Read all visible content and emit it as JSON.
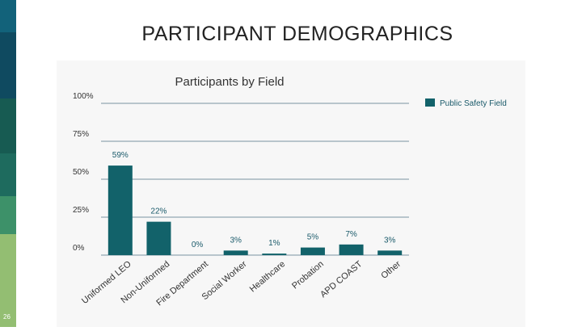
{
  "slide": {
    "title": "PARTICIPANT DEMOGRAPHICS",
    "page_number": "26",
    "sidebar_colors": [
      "#12627a",
      "#0f4a60",
      "#175b52",
      "#1e6b5e",
      "#3d9169",
      "#93be72"
    ]
  },
  "chart_data": {
    "type": "bar",
    "title": "Participants by Field",
    "xlabel": "",
    "ylabel": "",
    "ylim": [
      0,
      100
    ],
    "yticks": [
      "0%",
      "25%",
      "50%",
      "75%",
      "100%"
    ],
    "categories": [
      "Uniformed LEO",
      "Non-Uniformed",
      "Fire Department",
      "Social Worker",
      "Healthcare",
      "Probation",
      "APD COAST",
      "Other"
    ],
    "series": [
      {
        "name": "Public Safety Field",
        "values": [
          59,
          22,
          0,
          3,
          1,
          5,
          7,
          3
        ],
        "labels": [
          "59%",
          "22%",
          "0%",
          "3%",
          "1%",
          "5%",
          "7%",
          "3%"
        ],
        "color": "#12626a"
      }
    ],
    "legend_position": "top-right",
    "grid": true
  }
}
